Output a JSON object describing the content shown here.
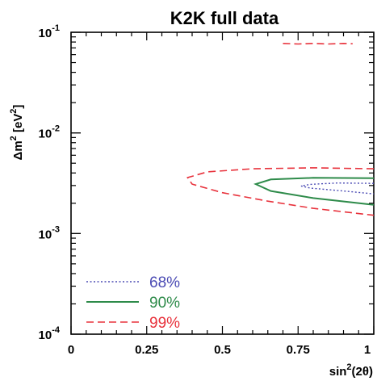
{
  "chart_data": {
    "type": "contour",
    "title": "K2K full data",
    "xlabel": {
      "main": "sin",
      "sup": "2",
      "rest": "(2θ)"
    },
    "ylabel": {
      "main": "Δm",
      "sup": "2",
      "rest": " [eV",
      "sup2": "2",
      "end": "]"
    },
    "x_ticks": [
      "0",
      "0.25",
      "0.5",
      "0.75",
      "1"
    ],
    "y_ticks": [
      {
        "base": "10",
        "exp": "-1"
      },
      {
        "base": "10",
        "exp": "-2"
      },
      {
        "base": "10",
        "exp": "-3"
      },
      {
        "base": "10",
        "exp": "-4"
      }
    ],
    "xlim": [
      0,
      1
    ],
    "ylim": [
      0.0001,
      0.1
    ],
    "y_scale": "log",
    "grid": false,
    "legend_position": "bottom-left",
    "series": [
      {
        "name": "68%",
        "color": "#4b4bb4",
        "dash": "dotted",
        "points": [
          [
            1.0,
            0.00315
          ],
          [
            0.88,
            0.00318
          ],
          [
            0.79,
            0.00308
          ],
          [
            0.76,
            0.00297
          ],
          [
            0.79,
            0.00283
          ],
          [
            0.9,
            0.00265
          ],
          [
            1.0,
            0.00248
          ]
        ]
      },
      {
        "name": "90%",
        "color": "#2e8b4a",
        "dash": "solid",
        "points": [
          [
            1.0,
            0.00355
          ],
          [
            0.8,
            0.00358
          ],
          [
            0.66,
            0.00345
          ],
          [
            0.61,
            0.0031
          ],
          [
            0.66,
            0.00265
          ],
          [
            0.8,
            0.00225
          ],
          [
            1.0,
            0.00193
          ]
        ]
      },
      {
        "name": "99%",
        "color": "#e8323c",
        "dash": "dashed",
        "points": [
          [
            1.0,
            0.0044
          ],
          [
            0.8,
            0.0045
          ],
          [
            0.6,
            0.0044
          ],
          [
            0.45,
            0.0041
          ],
          [
            0.385,
            0.0036
          ],
          [
            0.4,
            0.0031
          ],
          [
            0.5,
            0.00255
          ],
          [
            0.65,
            0.0021
          ],
          [
            0.8,
            0.00178
          ],
          [
            1.0,
            0.00152
          ]
        ]
      }
    ],
    "extra_regions": [
      {
        "series": "99%",
        "color": "#e8323c",
        "points": [
          [
            0.7,
            0.0775
          ],
          [
            0.75,
            0.0765
          ],
          [
            0.8,
            0.0775
          ],
          [
            0.85,
            0.0765
          ],
          [
            0.9,
            0.0775
          ],
          [
            0.93,
            0.077
          ]
        ]
      }
    ]
  }
}
